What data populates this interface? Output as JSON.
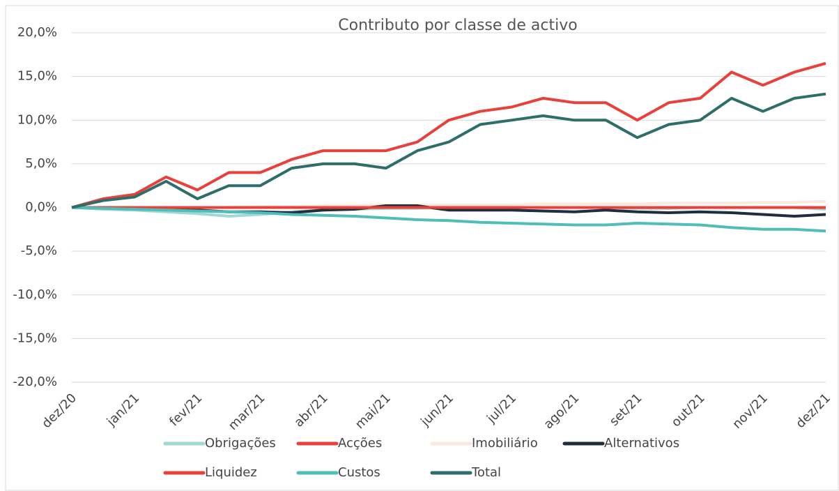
{
  "chart_data": {
    "type": "line",
    "title": "Contributo por classe de activo",
    "categories": [
      "dez/20",
      null,
      "jan/21",
      null,
      "fev/21",
      null,
      "mar/21",
      null,
      "abr/21",
      null,
      "mai/21",
      null,
      "jun/21",
      null,
      "jul/21",
      null,
      "ago/21",
      null,
      "set/21",
      null,
      "out/21",
      null,
      "nov/21",
      null,
      "dez/21"
    ],
    "series": [
      {
        "name": "Obrigações",
        "color": "#9fd8d4",
        "values": [
          0,
          -0.2,
          -0.3,
          -0.5,
          -0.7,
          -1.0,
          -0.8,
          -0.5,
          -0.3,
          -0.2,
          -0.1,
          -0.1,
          0,
          0,
          0,
          0,
          0,
          0,
          -0.1,
          -0.1,
          0,
          0,
          0,
          0,
          -0.2
        ]
      },
      {
        "name": "Acções",
        "color": "#e8413c",
        "values": [
          0,
          1.0,
          1.5,
          3.5,
          2.0,
          4.0,
          4.0,
          5.5,
          6.5,
          6.5,
          6.5,
          7.5,
          10.0,
          11.0,
          11.5,
          12.5,
          12.0,
          12.0,
          10.0,
          12.0,
          12.5,
          15.5,
          14.0,
          15.5,
          16.5
        ]
      },
      {
        "name": "Imobiliário",
        "color": "#fbe9e0",
        "values": [
          0,
          0,
          0,
          0,
          0,
          0,
          0.1,
          0.1,
          0.2,
          0.2,
          0.3,
          0.3,
          0.3,
          0.3,
          0.3,
          0.4,
          0.4,
          0.4,
          0.4,
          0.5,
          0.5,
          0.5,
          0.6,
          0.6,
          0.7
        ]
      },
      {
        "name": "Alternativos",
        "color": "#1f2d3d",
        "values": [
          0,
          0,
          0,
          -0.1,
          -0.3,
          -0.5,
          -0.5,
          -0.6,
          -0.3,
          -0.2,
          0.2,
          0.2,
          -0.3,
          -0.3,
          -0.3,
          -0.4,
          -0.5,
          -0.3,
          -0.5,
          -0.6,
          -0.5,
          -0.6,
          -0.8,
          -1.0,
          -0.8
        ]
      },
      {
        "name": "Liquidez",
        "color": "#e8413c",
        "values": [
          0,
          0,
          0,
          0,
          0,
          0,
          0,
          0,
          0,
          0,
          0,
          0,
          0,
          0,
          0,
          0,
          0,
          0,
          0,
          0,
          0,
          0,
          0,
          0,
          0
        ]
      },
      {
        "name": "Custos",
        "color": "#4fbdb8",
        "values": [
          0,
          -0.1,
          -0.2,
          -0.3,
          -0.4,
          -0.5,
          -0.6,
          -0.8,
          -0.9,
          -1.0,
          -1.2,
          -1.4,
          -1.5,
          -1.7,
          -1.8,
          -1.9,
          -2.0,
          -2.0,
          -1.8,
          -1.9,
          -2.0,
          -2.3,
          -2.5,
          -2.5,
          -2.7
        ]
      },
      {
        "name": "Total",
        "color": "#2e6e6a",
        "values": [
          0,
          0.8,
          1.2,
          3.0,
          1.0,
          2.5,
          2.5,
          4.5,
          5.0,
          5.0,
          4.5,
          6.5,
          7.5,
          9.5,
          10.0,
          10.5,
          10.0,
          10.0,
          8.0,
          9.5,
          10.0,
          12.5,
          11.0,
          12.5,
          13.0
        ]
      }
    ],
    "ylim": [
      -20,
      20
    ],
    "yticks": [
      {
        "value": -20,
        "label": "-20,0%"
      },
      {
        "value": -15,
        "label": "-15,0%"
      },
      {
        "value": -10,
        "label": "-10,0%"
      },
      {
        "value": -5,
        "label": "-5,0%"
      },
      {
        "value": 0,
        "label": "0,0%"
      },
      {
        "value": 5,
        "label": "5,0%"
      },
      {
        "value": 10,
        "label": "10,0%"
      },
      {
        "value": 15,
        "label": "15,0%"
      },
      {
        "value": 20,
        "label": "20,0%"
      }
    ],
    "grid": true
  }
}
